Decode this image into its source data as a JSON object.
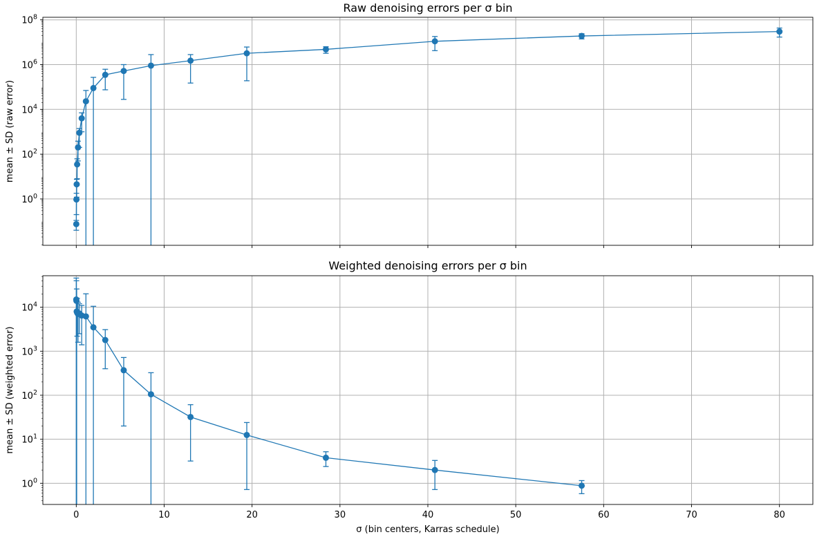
{
  "chart_data": [
    {
      "type": "line",
      "title": "Raw denoising errors per σ bin",
      "xlabel": "",
      "ylabel": "mean ± SD (raw error)",
      "y_scale": "log",
      "xlim": [
        -3.8,
        83.8
      ],
      "ylim": [
        0.0085,
        130000000
      ],
      "grid": true,
      "color": "#1f77b4",
      "x_ticks": [
        0,
        10,
        20,
        30,
        40,
        50,
        60,
        70,
        80
      ],
      "y_ticks": [
        {
          "value": 1,
          "label": "10^0"
        },
        {
          "value": 100,
          "label": "10^2"
        },
        {
          "value": 10000,
          "label": "10^4"
        },
        {
          "value": 1000000,
          "label": "10^6"
        },
        {
          "value": 100000000,
          "label": "10^8"
        }
      ],
      "points": [
        {
          "x": 0.002,
          "y": 0.075,
          "err": [
            0.04,
            0.11
          ]
        },
        {
          "x": 0.02,
          "y": 0.95,
          "err": [
            0.2,
            1.8
          ]
        },
        {
          "x": 0.05,
          "y": 4.5,
          "err": [
            1.2,
            7.5
          ]
        },
        {
          "x": 0.1,
          "y": 35,
          "err": [
            8,
            62
          ]
        },
        {
          "x": 0.2,
          "y": 200,
          "err": [
            50,
            380
          ]
        },
        {
          "x": 0.35,
          "y": 900,
          "err": [
            200,
            1400
          ]
        },
        {
          "x": 0.62,
          "y": 4000,
          "err": [
            1000,
            7000
          ]
        },
        {
          "x": 1.1,
          "y": 23000,
          "err": 47000
        },
        {
          "x": 1.95,
          "y": 90000,
          "err": 180000
        },
        {
          "x": 3.3,
          "y": 350000,
          "err": [
            75000,
            620000
          ]
        },
        {
          "x": 5.4,
          "y": 520000,
          "err": [
            28000,
            1000000
          ]
        },
        {
          "x": 8.5,
          "y": 900000,
          "err": 1900000
        },
        {
          "x": 13,
          "y": 1500000,
          "err": [
            150000,
            2800000
          ]
        },
        {
          "x": 19.4,
          "y": 3200000,
          "err": [
            190000,
            6100000
          ]
        },
        {
          "x": 28.4,
          "y": 4800000,
          "err": [
            3200000,
            6300000
          ]
        },
        {
          "x": 40.8,
          "y": 11000000,
          "err": [
            4200000,
            18000000
          ]
        },
        {
          "x": 57.5,
          "y": 19000000,
          "err": [
            14000000,
            24000000
          ]
        },
        {
          "x": 80,
          "y": 30000000,
          "err": [
            17000000,
            43000000
          ]
        }
      ]
    },
    {
      "type": "line",
      "title": "Weighted denoising errors per σ bin",
      "xlabel": "σ (bin centers, Karras schedule)",
      "ylabel": "mean ± SD (weighted error)",
      "y_scale": "log",
      "xlim": [
        -3.8,
        83.8
      ],
      "ylim": [
        0.33,
        52000
      ],
      "grid": true,
      "color": "#1f77b4",
      "x_ticks": [
        0,
        10,
        20,
        30,
        40,
        50,
        60,
        70,
        80
      ],
      "y_ticks": [
        {
          "value": 1,
          "label": "10^0"
        },
        {
          "value": 10,
          "label": "10^1"
        },
        {
          "value": 100,
          "label": "10^2"
        },
        {
          "value": 1000,
          "label": "10^3"
        },
        {
          "value": 10000,
          "label": "10^4"
        }
      ],
      "points": [
        {
          "x": 0.002,
          "y": 15000,
          "err": 31000
        },
        {
          "x": 0.02,
          "y": 14000,
          "err": 26000
        },
        {
          "x": 0.05,
          "y": 8000,
          "err": 18000
        },
        {
          "x": 0.1,
          "y": 7500,
          "err": [
            2200,
            16000
          ]
        },
        {
          "x": 0.2,
          "y": 7000,
          "err": [
            1600,
            13000
          ]
        },
        {
          "x": 0.35,
          "y": 7200,
          "err": [
            2500,
            12000
          ]
        },
        {
          "x": 0.62,
          "y": 6500,
          "err": [
            1400,
            11000
          ]
        },
        {
          "x": 1.1,
          "y": 6200,
          "err": 14000
        },
        {
          "x": 1.95,
          "y": 3500,
          "err": 7000
        },
        {
          "x": 3.3,
          "y": 1800,
          "err": [
            400,
            3100
          ]
        },
        {
          "x": 5.4,
          "y": 370,
          "err": [
            20,
            720
          ]
        },
        {
          "x": 8.5,
          "y": 105,
          "err": 220
        },
        {
          "x": 13,
          "y": 32,
          "err": [
            3.2,
            61
          ]
        },
        {
          "x": 19.4,
          "y": 12.5,
          "err": [
            0.72,
            24
          ]
        },
        {
          "x": 28.4,
          "y": 3.8,
          "err": [
            2.4,
            5.2
          ]
        },
        {
          "x": 40.8,
          "y": 2.0,
          "err": [
            0.72,
            3.3
          ]
        },
        {
          "x": 57.5,
          "y": 0.88,
          "err": [
            0.58,
            1.15
          ]
        }
      ]
    }
  ]
}
